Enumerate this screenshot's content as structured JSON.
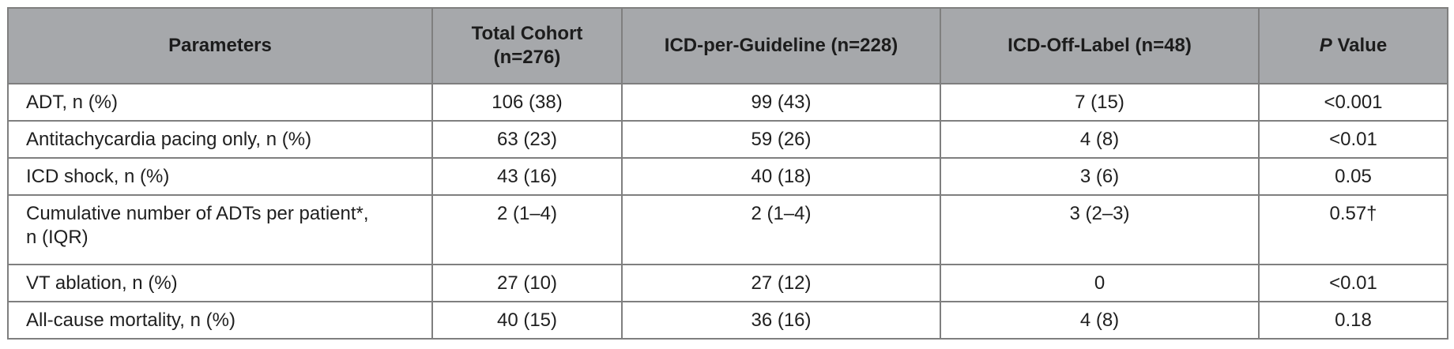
{
  "table": {
    "headers": [
      {
        "prefix": "",
        "label": "Parameters"
      },
      {
        "prefix": "",
        "label": "Total Cohort",
        "label2": "(n=276)"
      },
      {
        "prefix": "",
        "label": "ICD-per-Guideline (n=228)"
      },
      {
        "prefix": "",
        "label": "ICD-Off-Label (n=48)"
      },
      {
        "prefix": "P",
        "label": " Value"
      }
    ],
    "rows": [
      {
        "param": "ADT, n (%)",
        "total": "106 (38)",
        "guideline": "99 (43)",
        "offlabel": "7 (15)",
        "p": "<0.001"
      },
      {
        "param": "Antitachycardia pacing only, n (%)",
        "total": "63 (23)",
        "guideline": "59 (26)",
        "offlabel": "4 (8)",
        "p": "<0.01"
      },
      {
        "param": "ICD shock, n (%)",
        "total": "43 (16)",
        "guideline": "40 (18)",
        "offlabel": "3 (6)",
        "p": "0.05"
      },
      {
        "param": "Cumulative number of ADTs per patient*,",
        "param2": "n (IQR)",
        "total": "2 (1–4)",
        "guideline": "2 (1–4)",
        "offlabel": "3 (2–3)",
        "p": "0.57†"
      },
      {
        "param": "VT ablation, n (%)",
        "total": "27 (10)",
        "guideline": "27 (12)",
        "offlabel": "0",
        "p": "<0.01"
      },
      {
        "param": "All-cause mortality, n (%)",
        "total": "40 (15)",
        "guideline": "36 (16)",
        "offlabel": "4 (8)",
        "p": "0.18"
      }
    ]
  }
}
